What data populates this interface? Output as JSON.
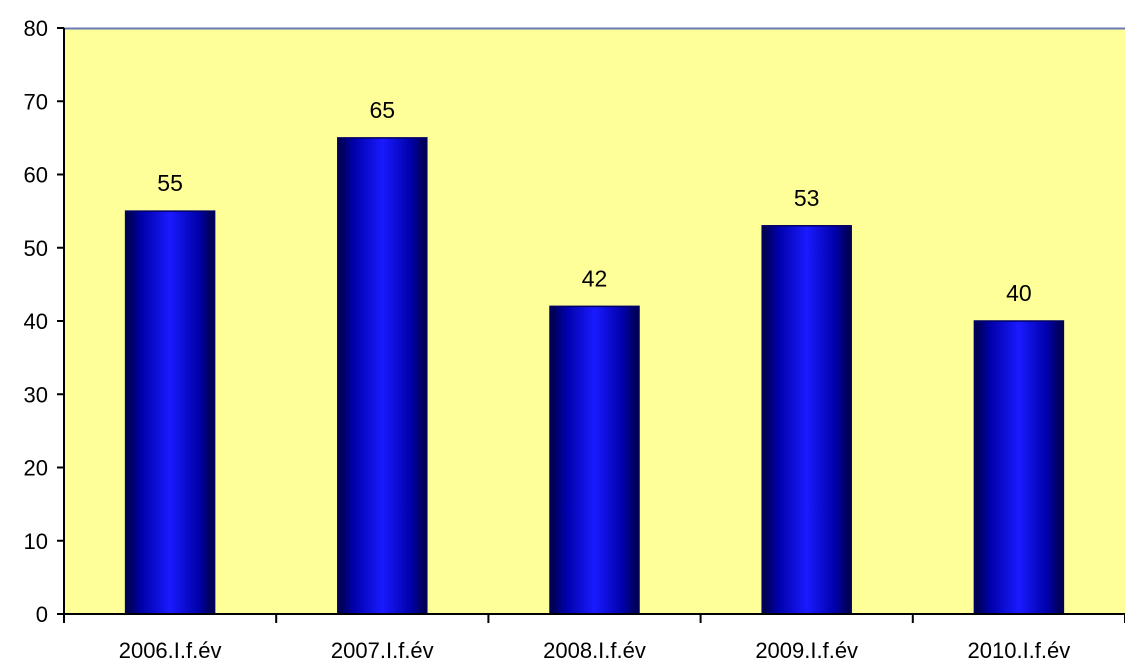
{
  "colors": {
    "plot_background": "#ffff99",
    "bar_fill": "#0000cc",
    "bar_dark": "#000066",
    "axis": "#000000",
    "top_border": "#6a7ab8"
  },
  "chart_data": {
    "type": "bar",
    "title": "",
    "xlabel": "",
    "ylabel": "",
    "categories": [
      "2006.I.f.év",
      "2007.I.f.év",
      "2008.I.f.év",
      "2009.I.f.év",
      "2010.I.f.év"
    ],
    "values": [
      55,
      65,
      42,
      53,
      40
    ],
    "data_labels": [
      "55",
      "65",
      "42",
      "53",
      "40"
    ],
    "ylim": [
      0,
      80
    ],
    "yticks": [
      "0",
      "10",
      "20",
      "30",
      "40",
      "50",
      "60",
      "70",
      "80"
    ],
    "grid": false,
    "legend": "none"
  }
}
